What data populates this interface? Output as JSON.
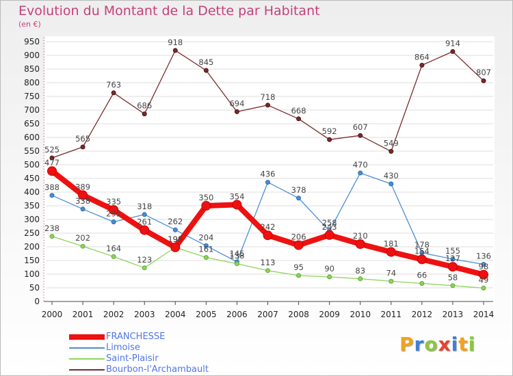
{
  "header": {
    "title": "Evolution du Montant de la Dette par Habitant",
    "subtitle": "(en €)"
  },
  "logo": {
    "letters": [
      "P",
      "r",
      "o",
      "x",
      "i",
      "t",
      "i"
    ],
    "colors": [
      "#f2a21b",
      "#3f7fd6",
      "#8cc63f",
      "#e8432f",
      "#3f7fd6",
      "#f2a21b",
      "#8cc63f"
    ]
  },
  "chart_data": {
    "type": "line",
    "x": [
      "2000",
      "2001",
      "2002",
      "2003",
      "2004",
      "2005",
      "2006",
      "2007",
      "2008",
      "2009",
      "2010",
      "2011",
      "2012",
      "2013",
      "2014"
    ],
    "ylim": [
      0,
      950
    ],
    "yticks": [
      "0",
      "50",
      "100",
      "150",
      "200",
      "250",
      "300",
      "350",
      "400",
      "450",
      "500",
      "550",
      "600",
      "650",
      "700",
      "750",
      "800",
      "850",
      "900",
      "950"
    ],
    "grid": true,
    "legend_position": "bottom-left",
    "series": [
      {
        "name": "Bourbon-l'Archambault",
        "color": "#7a2a2a",
        "values": [
          525,
          565,
          763,
          686,
          918,
          845,
          694,
          718,
          668,
          592,
          607,
          549,
          864,
          914,
          807
        ],
        "labels": [
          "525",
          "565",
          "763",
          "686",
          "918",
          "845",
          "694",
          "718",
          "668",
          "592",
          "607",
          "549",
          "864",
          "914",
          "807"
        ]
      },
      {
        "name": "Limoise",
        "color": "#4a8ed0",
        "values": [
          388,
          338,
          291,
          318,
          262,
          204,
          145,
          436,
          378,
          258,
          470,
          430,
          178,
          155,
          136
        ],
        "labels": [
          "388",
          "338",
          "291",
          "318",
          "262",
          "204",
          "145",
          "436",
          "378",
          "258",
          "470",
          "430",
          "178",
          "155",
          "136"
        ]
      },
      {
        "name": "Saint-Plaisir",
        "color": "#8ed35c",
        "values": [
          238,
          202,
          164,
          123,
          198,
          161,
          138,
          113,
          95,
          90,
          83,
          74,
          66,
          58,
          49
        ],
        "labels": [
          "238",
          "202",
          "164",
          "123",
          "198",
          "161",
          "138",
          "113",
          "95",
          "90",
          "83",
          "74",
          "66",
          "58",
          "49"
        ]
      },
      {
        "name": "FRANCHESSE",
        "color": "#ee1111",
        "values": [
          477,
          389,
          335,
          261,
          198,
          350,
          354,
          242,
          206,
          243,
          210,
          181,
          154,
          127,
          98
        ],
        "labels": [
          "477",
          "389",
          "335",
          "261",
          "198",
          "350",
          "354",
          "242",
          "206",
          "243",
          "210",
          "181",
          "154",
          "127",
          "98"
        ]
      }
    ],
    "legend_order": [
      "FRANCHESSE",
      "Limoise",
      "Saint-Plaisir",
      "Bourbon-l'Archambault"
    ]
  }
}
